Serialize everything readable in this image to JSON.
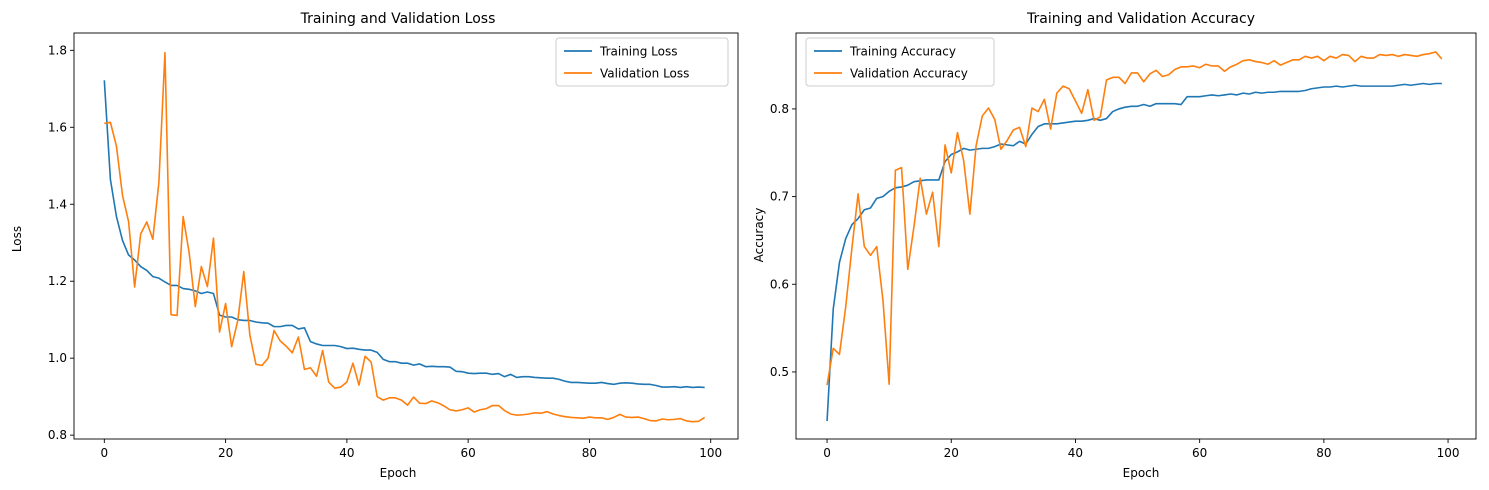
{
  "chart_data": [
    {
      "type": "line",
      "title": "Training and Validation Loss",
      "xlabel": "Epoch",
      "ylabel": "Loss",
      "xlim": [
        -5,
        104.5
      ],
      "ylim": [
        0.79,
        1.845
      ],
      "xticks": [
        0,
        20,
        40,
        60,
        80,
        100
      ],
      "yticks": [
        0.8,
        1.0,
        1.2,
        1.4,
        1.6,
        1.8
      ],
      "ytick_labels": [
        "0.8",
        "1.0",
        "1.2",
        "1.4",
        "1.6",
        "1.8"
      ],
      "legend_position": "upper right",
      "series": [
        {
          "name": "Training Loss",
          "color": "#1f77b4",
          "values": [
            1.722,
            1.465,
            1.368,
            1.306,
            1.268,
            1.255,
            1.238,
            1.228,
            1.212,
            1.208,
            1.198,
            1.189,
            1.189,
            1.181,
            1.179,
            1.175,
            1.168,
            1.172,
            1.168,
            1.112,
            1.107,
            1.107,
            1.1,
            1.098,
            1.098,
            1.094,
            1.092,
            1.091,
            1.082,
            1.082,
            1.085,
            1.085,
            1.076,
            1.079,
            1.043,
            1.037,
            1.033,
            1.033,
            1.033,
            1.03,
            1.025,
            1.026,
            1.023,
            1.021,
            1.021,
            1.015,
            0.997,
            0.991,
            0.991,
            0.987,
            0.987,
            0.982,
            0.985,
            0.978,
            0.979,
            0.978,
            0.978,
            0.977,
            0.966,
            0.965,
            0.961,
            0.96,
            0.961,
            0.961,
            0.958,
            0.96,
            0.952,
            0.958,
            0.95,
            0.952,
            0.952,
            0.95,
            0.949,
            0.948,
            0.948,
            0.945,
            0.94,
            0.937,
            0.937,
            0.936,
            0.935,
            0.935,
            0.937,
            0.934,
            0.932,
            0.935,
            0.936,
            0.935,
            0.933,
            0.932,
            0.932,
            0.929,
            0.925,
            0.925,
            0.926,
            0.924,
            0.926,
            0.924,
            0.925,
            0.924
          ]
        },
        {
          "name": "Validation Loss",
          "color": "#ff7f0e",
          "values": [
            1.61,
            1.613,
            1.551,
            1.423,
            1.355,
            1.185,
            1.323,
            1.354,
            1.309,
            1.457,
            1.794,
            1.113,
            1.111,
            1.368,
            1.273,
            1.134,
            1.238,
            1.186,
            1.312,
            1.068,
            1.142,
            1.03,
            1.097,
            1.225,
            1.06,
            0.984,
            0.981,
            1.0,
            1.072,
            1.045,
            1.031,
            1.014,
            1.055,
            0.971,
            0.975,
            0.953,
            1.02,
            0.938,
            0.922,
            0.925,
            0.938,
            0.987,
            0.93,
            1.005,
            0.99,
            0.9,
            0.891,
            0.897,
            0.897,
            0.891,
            0.878,
            0.899,
            0.883,
            0.882,
            0.889,
            0.884,
            0.876,
            0.866,
            0.863,
            0.866,
            0.871,
            0.86,
            0.866,
            0.869,
            0.877,
            0.877,
            0.864,
            0.855,
            0.852,
            0.853,
            0.855,
            0.858,
            0.857,
            0.861,
            0.855,
            0.851,
            0.848,
            0.846,
            0.845,
            0.844,
            0.847,
            0.845,
            0.845,
            0.841,
            0.846,
            0.854,
            0.847,
            0.846,
            0.847,
            0.843,
            0.838,
            0.837,
            0.842,
            0.84,
            0.841,
            0.843,
            0.837,
            0.835,
            0.836,
            0.846
          ]
        }
      ]
    },
    {
      "type": "line",
      "title": "Training and Validation Accuracy",
      "xlabel": "Epoch",
      "ylabel": "Accuracy",
      "xlim": [
        -5,
        104.5
      ],
      "ylim": [
        0.4235,
        0.8866
      ],
      "xticks": [
        0,
        20,
        40,
        60,
        80,
        100
      ],
      "yticks": [
        0.5,
        0.6,
        0.7,
        0.8
      ],
      "ytick_labels": [
        "0.5",
        "0.6",
        "0.7",
        "0.8"
      ],
      "legend_position": "upper left",
      "series": [
        {
          "name": "Training Accuracy",
          "color": "#1f77b4",
          "values": [
            0.444,
            0.572,
            0.625,
            0.652,
            0.668,
            0.675,
            0.685,
            0.687,
            0.698,
            0.7,
            0.706,
            0.71,
            0.711,
            0.713,
            0.717,
            0.718,
            0.719,
            0.719,
            0.719,
            0.74,
            0.748,
            0.751,
            0.755,
            0.753,
            0.754,
            0.755,
            0.755,
            0.757,
            0.76,
            0.759,
            0.758,
            0.763,
            0.76,
            0.771,
            0.78,
            0.783,
            0.783,
            0.783,
            0.784,
            0.785,
            0.786,
            0.786,
            0.787,
            0.789,
            0.787,
            0.789,
            0.797,
            0.8,
            0.802,
            0.803,
            0.803,
            0.805,
            0.803,
            0.806,
            0.806,
            0.806,
            0.806,
            0.805,
            0.814,
            0.814,
            0.814,
            0.815,
            0.816,
            0.815,
            0.816,
            0.817,
            0.816,
            0.818,
            0.817,
            0.819,
            0.818,
            0.819,
            0.819,
            0.82,
            0.82,
            0.82,
            0.82,
            0.821,
            0.823,
            0.824,
            0.825,
            0.825,
            0.826,
            0.825,
            0.826,
            0.827,
            0.826,
            0.826,
            0.826,
            0.826,
            0.826,
            0.826,
            0.827,
            0.828,
            0.827,
            0.828,
            0.829,
            0.828,
            0.829,
            0.829
          ]
        },
        {
          "name": "Validation Accuracy",
          "color": "#ff7f0e",
          "values": [
            0.485,
            0.527,
            0.52,
            0.574,
            0.641,
            0.703,
            0.643,
            0.633,
            0.643,
            0.582,
            0.486,
            0.73,
            0.733,
            0.617,
            0.666,
            0.721,
            0.68,
            0.705,
            0.643,
            0.759,
            0.727,
            0.773,
            0.741,
            0.68,
            0.758,
            0.792,
            0.801,
            0.788,
            0.754,
            0.764,
            0.776,
            0.779,
            0.757,
            0.801,
            0.797,
            0.811,
            0.777,
            0.818,
            0.826,
            0.823,
            0.809,
            0.795,
            0.822,
            0.787,
            0.791,
            0.833,
            0.836,
            0.836,
            0.829,
            0.841,
            0.841,
            0.831,
            0.84,
            0.844,
            0.837,
            0.839,
            0.845,
            0.848,
            0.848,
            0.849,
            0.847,
            0.851,
            0.849,
            0.849,
            0.843,
            0.848,
            0.851,
            0.855,
            0.856,
            0.854,
            0.853,
            0.851,
            0.855,
            0.85,
            0.853,
            0.856,
            0.856,
            0.86,
            0.858,
            0.86,
            0.855,
            0.86,
            0.858,
            0.862,
            0.861,
            0.854,
            0.86,
            0.858,
            0.858,
            0.862,
            0.861,
            0.862,
            0.86,
            0.862,
            0.861,
            0.86,
            0.862,
            0.863,
            0.865,
            0.857
          ]
        }
      ]
    }
  ]
}
